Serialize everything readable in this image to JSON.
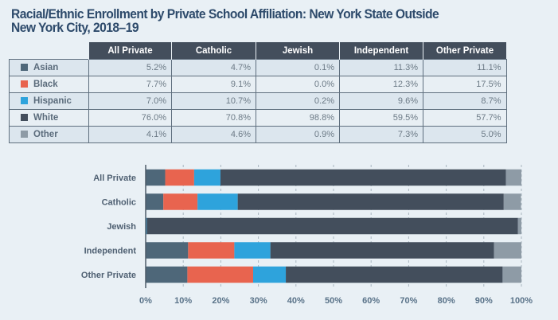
{
  "title": "Racial/Ethnic Enrollment by Private School Affiliation: New York State Outside New York City, 2018–19",
  "table": {
    "columns": [
      "All Private",
      "Catholic",
      "Jewish",
      "Independent",
      "Other Private"
    ],
    "rows": [
      {
        "label": "Asian",
        "color": "#4e6779",
        "values": [
          "5.2%",
          "4.7%",
          "0.1%",
          "11.3%",
          "11.1%"
        ]
      },
      {
        "label": "Black",
        "color": "#e8644f",
        "values": [
          "7.7%",
          "9.1%",
          "0.0%",
          "12.3%",
          "17.5%"
        ]
      },
      {
        "label": "Hispanic",
        "color": "#2ea3dc",
        "values": [
          "7.0%",
          "10.7%",
          "0.2%",
          "9.6%",
          "8.7%"
        ]
      },
      {
        "label": "White",
        "color": "#434e5c",
        "values": [
          "76.0%",
          "70.8%",
          "98.8%",
          "59.5%",
          "57.7%"
        ]
      },
      {
        "label": "Other",
        "color": "#8e9ba6",
        "values": [
          "4.1%",
          "4.6%",
          "0.9%",
          "7.3%",
          "5.0%"
        ]
      }
    ]
  },
  "chart_data": {
    "type": "bar",
    "orientation": "horizontal",
    "stacked": true,
    "title": "Racial/Ethnic Enrollment by Private School Affiliation: New York State Outside New York City, 2018–19",
    "categories": [
      "All Private",
      "Catholic",
      "Jewish",
      "Independent",
      "Other Private"
    ],
    "series": [
      {
        "name": "Asian",
        "color": "#4e6779",
        "values": [
          5.2,
          4.7,
          0.1,
          11.3,
          11.1
        ]
      },
      {
        "name": "Black",
        "color": "#e8644f",
        "values": [
          7.7,
          9.1,
          0.0,
          12.3,
          17.5
        ]
      },
      {
        "name": "Hispanic",
        "color": "#2ea3dc",
        "values": [
          7.0,
          10.7,
          0.2,
          9.6,
          8.7
        ]
      },
      {
        "name": "White",
        "color": "#434e5c",
        "values": [
          76.0,
          70.8,
          98.8,
          59.5,
          57.7
        ]
      },
      {
        "name": "Other",
        "color": "#8e9ba6",
        "values": [
          4.1,
          4.6,
          0.9,
          7.3,
          5.0
        ]
      }
    ],
    "xlabel": "",
    "ylabel": "",
    "xlim": [
      0,
      100
    ],
    "xticks": [
      "0%",
      "10%",
      "20%",
      "30%",
      "40%",
      "50%",
      "60%",
      "70%",
      "80%",
      "90%",
      "100%"
    ],
    "grid": "vertical dashed",
    "legend": "table-left"
  }
}
